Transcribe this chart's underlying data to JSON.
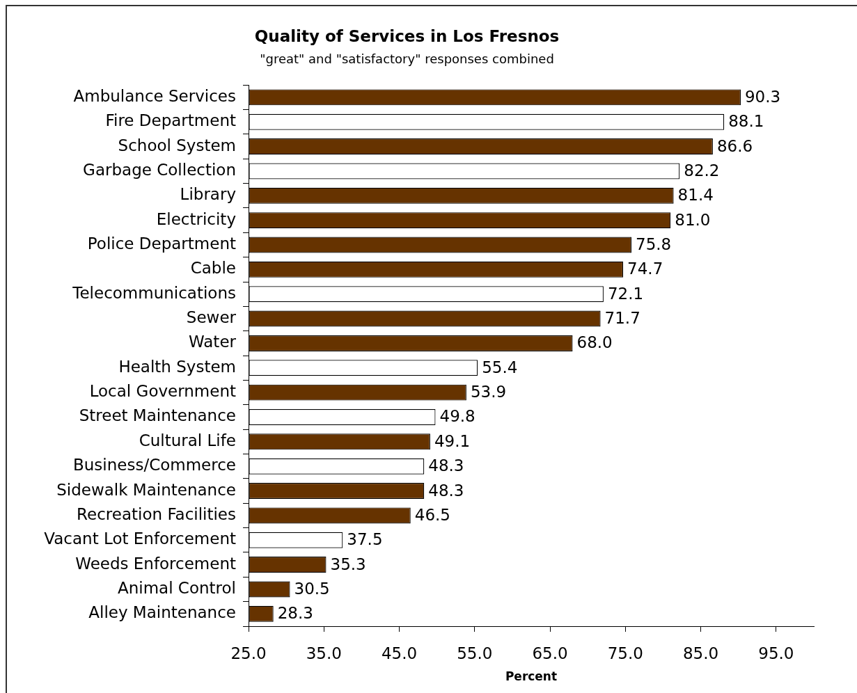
{
  "chart_data": {
    "type": "bar",
    "orientation": "horizontal",
    "title": "Quality of Services in Los Fresnos",
    "subtitle": "\"great\" and \"satisfactory\" responses combined",
    "xlabel": "Percent",
    "categories": [
      "Ambulance Services",
      "Fire Department",
      "School System",
      "Garbage Collection",
      "Library",
      "Electricity",
      "Police Department",
      "Cable",
      "Telecommunications",
      "Sewer",
      "Water",
      "Health System",
      "Local Government",
      "Street Maintenance",
      "Cultural Life",
      "Business/Commerce",
      "Sidewalk Maintenance",
      "Recreation Facilities",
      "Vacant Lot Enforcement",
      "Weeds Enforcement",
      "Animal Control",
      "Alley Maintenance"
    ],
    "values": [
      90.3,
      88.1,
      86.6,
      82.2,
      81.4,
      81.0,
      75.8,
      74.7,
      72.1,
      71.7,
      68.0,
      55.4,
      53.9,
      49.8,
      49.1,
      48.3,
      48.3,
      46.5,
      37.5,
      35.3,
      30.5,
      28.3
    ],
    "value_labels": [
      "90.3",
      "88.1",
      "86.6",
      "82.2",
      "81.4",
      "81.0",
      "75.8",
      "74.7",
      "72.1",
      "71.7",
      "68.0",
      "55.4",
      "53.9",
      "49.8",
      "49.1",
      "48.3",
      "48.3",
      "46.5",
      "37.5",
      "35.3",
      "30.5",
      "28.3"
    ],
    "colors": [
      "#663300",
      "#ffffff",
      "#663300",
      "#ffffff",
      "#663300",
      "#663300",
      "#663300",
      "#663300",
      "#ffffff",
      "#663300",
      "#663300",
      "#ffffff",
      "#663300",
      "#ffffff",
      "#663300",
      "#ffffff",
      "#663300",
      "#663300",
      "#ffffff",
      "#663300",
      "#663300",
      "#663300"
    ],
    "xlim": [
      25,
      100
    ],
    "xticks": [
      {
        "value": 25,
        "label": "25.0"
      },
      {
        "value": 35,
        "label": "35.0"
      },
      {
        "value": 45,
        "label": "45.0"
      },
      {
        "value": 55,
        "label": "55.0"
      },
      {
        "value": 65,
        "label": "65.0"
      },
      {
        "value": 75,
        "label": "75.0"
      },
      {
        "value": 85,
        "label": "85.0"
      },
      {
        "value": 95,
        "label": "95.0"
      }
    ],
    "grid": false,
    "legend": false
  }
}
